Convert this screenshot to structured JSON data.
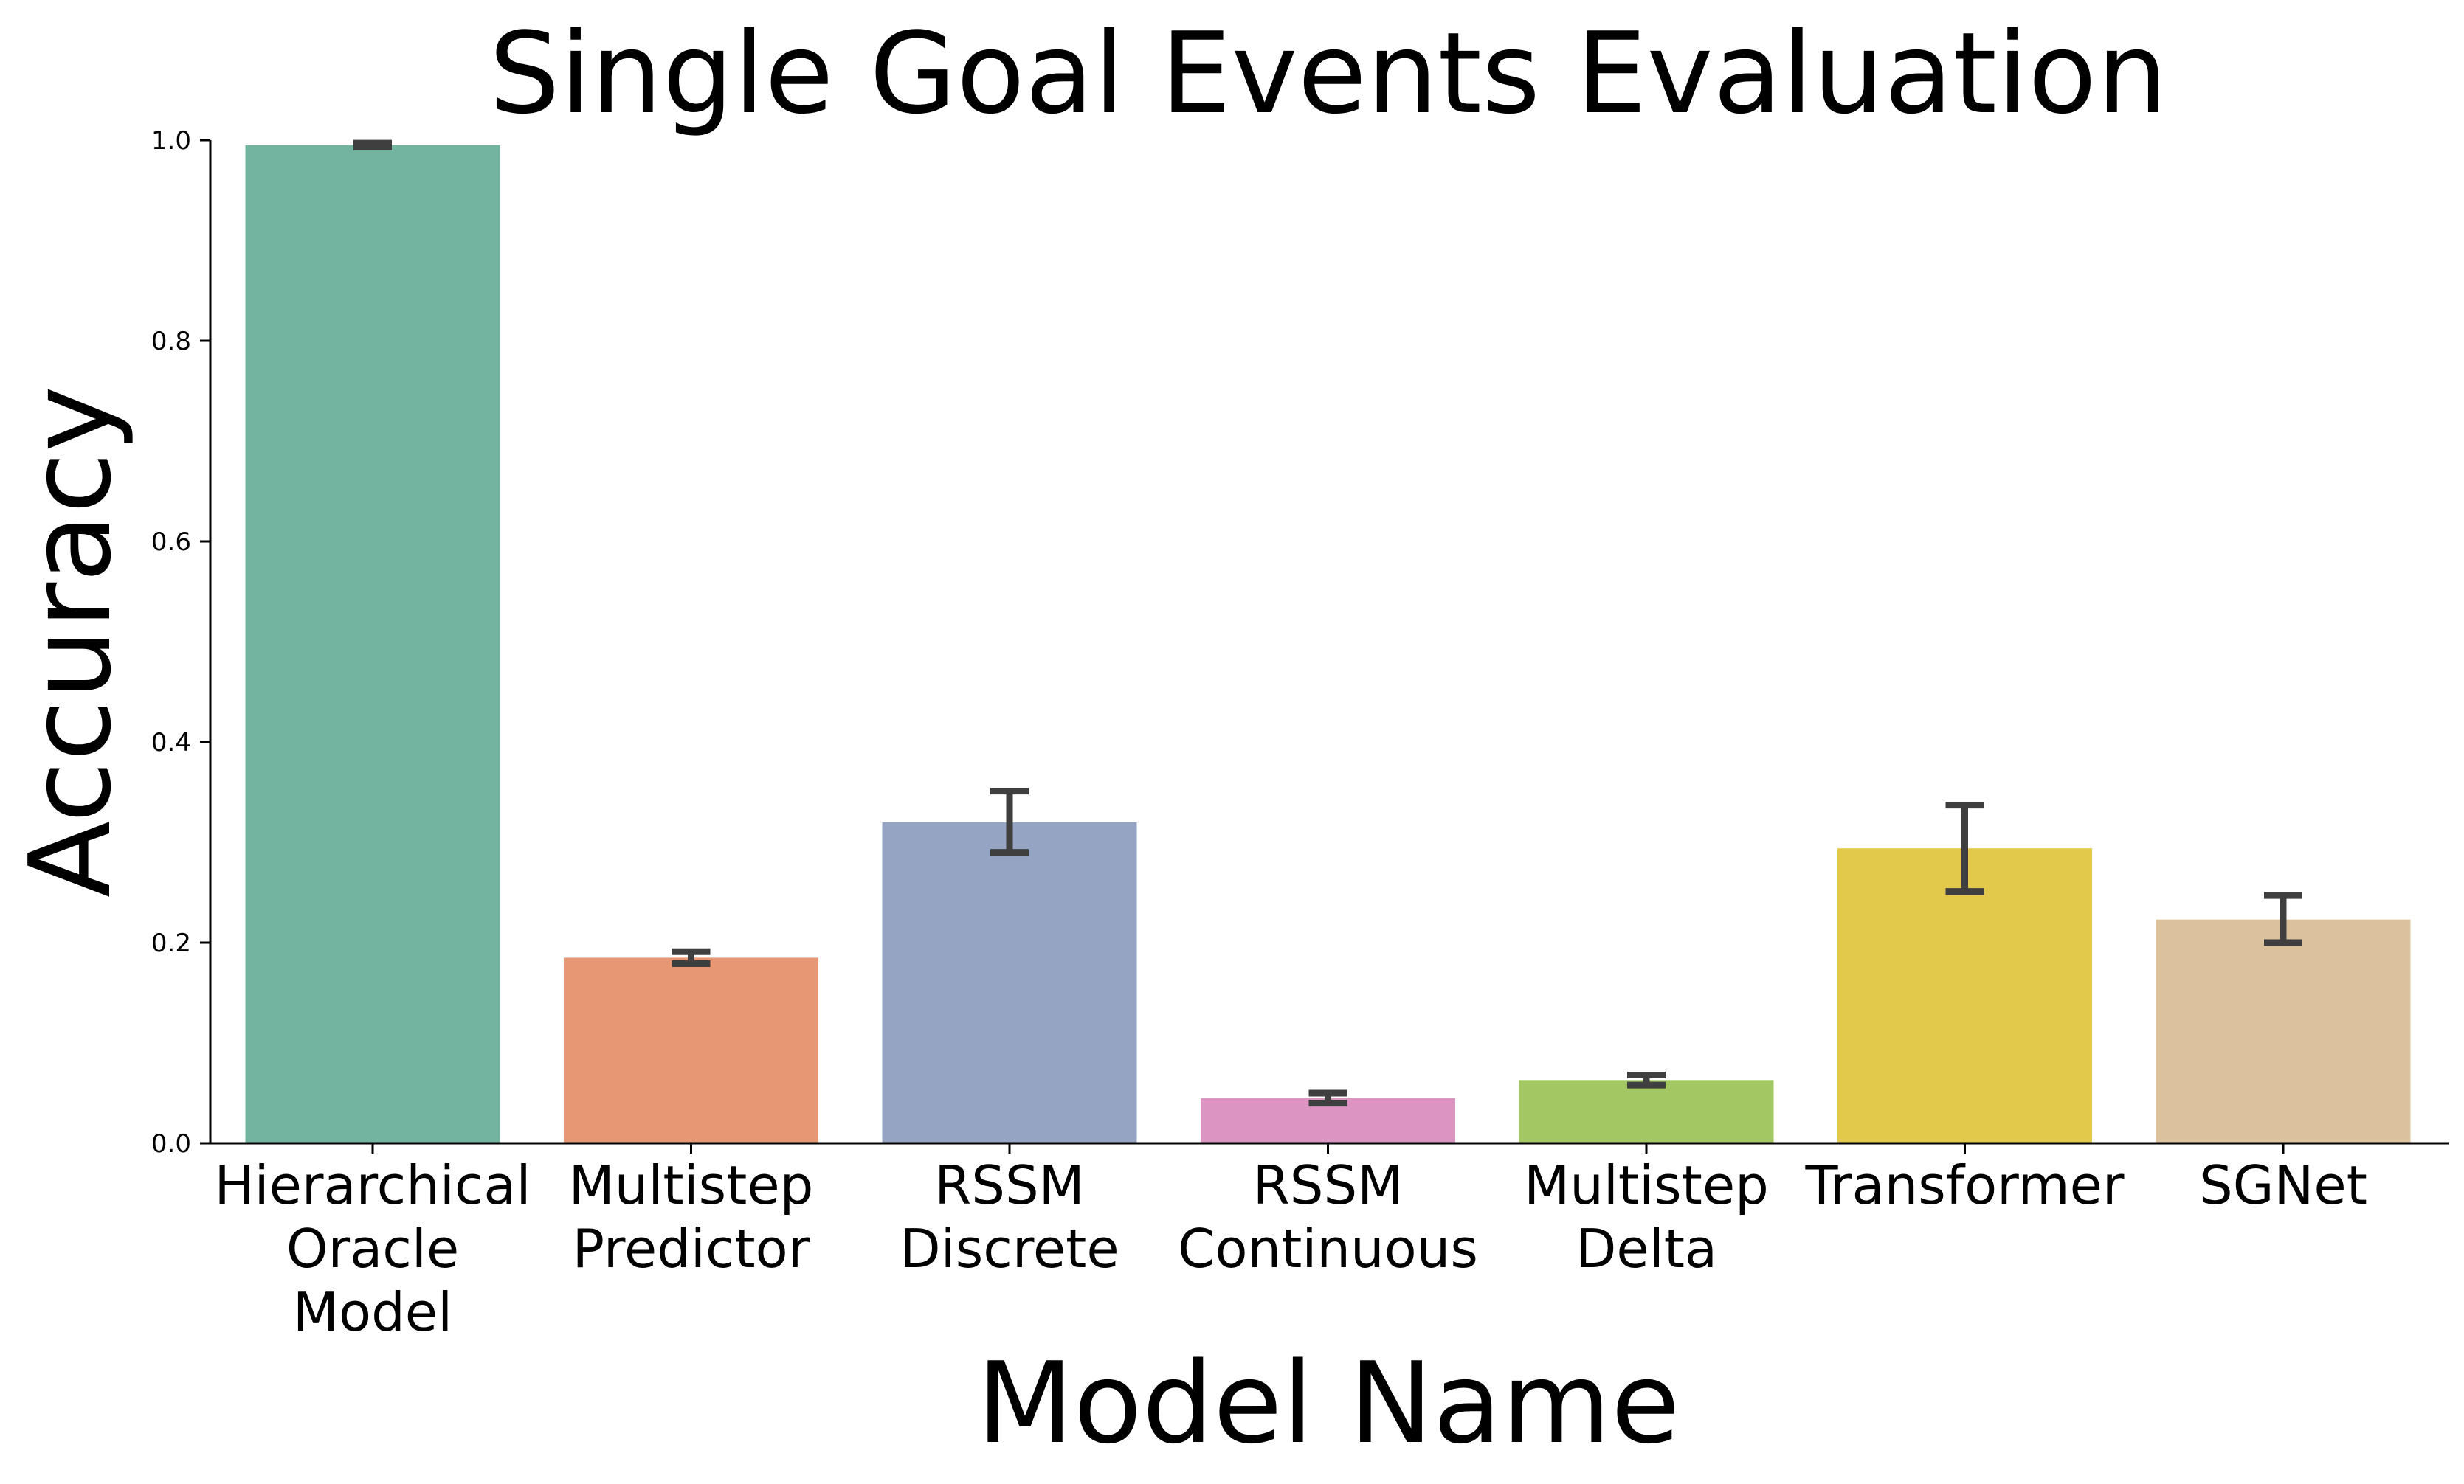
{
  "chart_data": {
    "type": "bar",
    "title": "Single Goal Events Evaluation",
    "xlabel": "Model Name",
    "ylabel": "Accuracy",
    "ylim": [
      0,
      1.0
    ],
    "yticks": [
      "0.0",
      "0.2",
      "0.4",
      "0.6",
      "0.8",
      "1.0"
    ],
    "categories": [
      [
        "Hierarchical",
        "Oracle",
        "Model"
      ],
      [
        "Multistep",
        "Predictor"
      ],
      [
        "RSSM",
        "Discrete"
      ],
      [
        "RSSM",
        "Continuous"
      ],
      [
        "Multistep",
        "Delta"
      ],
      [
        "Transformer"
      ],
      [
        "SGNet"
      ]
    ],
    "values": [
      0.995,
      0.185,
      0.32,
      0.045,
      0.063,
      0.294,
      0.223
    ],
    "error_low": [
      0.993,
      0.179,
      0.29,
      0.04,
      0.058,
      0.251,
      0.2
    ],
    "error_high": [
      0.997,
      0.191,
      0.351,
      0.05,
      0.068,
      0.337,
      0.247
    ],
    "colors": [
      "#72b49f",
      "#e89774",
      "#95a4c3",
      "#dc95c3",
      "#a3c762",
      "#e3c94b",
      "#dbc29c"
    ],
    "grid": false,
    "legend": "none"
  }
}
